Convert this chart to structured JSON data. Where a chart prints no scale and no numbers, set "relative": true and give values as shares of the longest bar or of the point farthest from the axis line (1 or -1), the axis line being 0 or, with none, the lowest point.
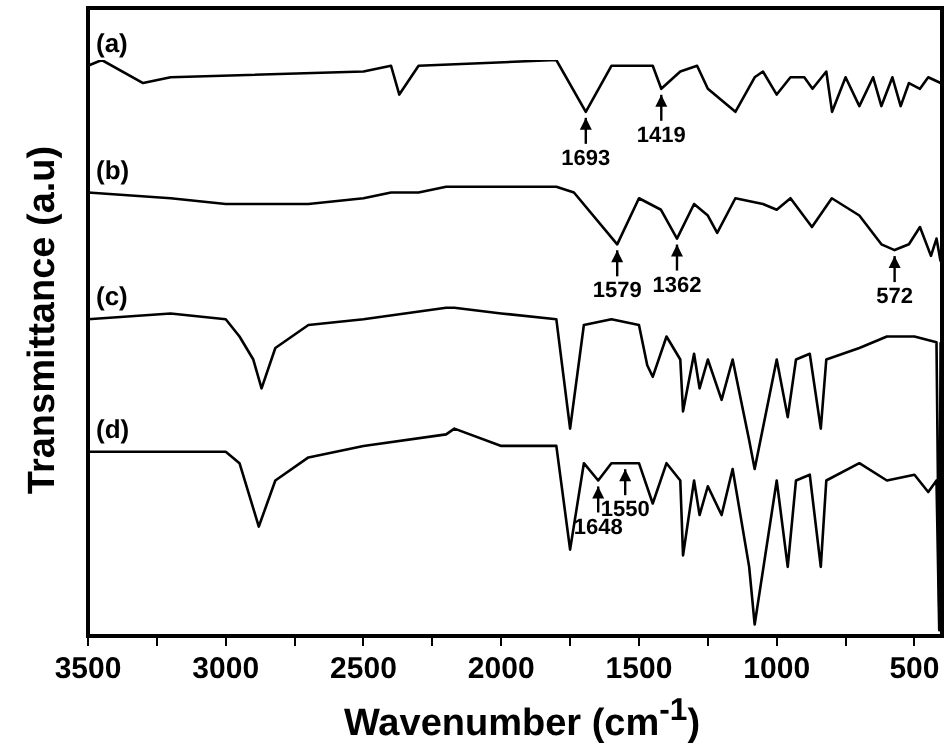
{
  "chart_data": {
    "type": "line",
    "relative": true,
    "xlabel": "Wavenumber (cm$^{-1}$)",
    "ylabel": "Transmittance (a.u)",
    "xlim": [
      3500,
      400
    ],
    "xticks": [
      3500,
      {
        "value": 3250,
        "label": null
      },
      3000,
      {
        "value": 2750,
        "label": null
      },
      2500,
      {
        "value": 2250,
        "label": null
      },
      2000,
      {
        "value": 1750,
        "label": null
      },
      1500,
      {
        "value": 1250,
        "label": null
      },
      1000,
      {
        "value": 750,
        "label": null
      },
      500
    ],
    "series": [
      {
        "color": "#000000",
        "x": [
          3500,
          3450,
          3300,
          3200,
          2500,
          2400,
          2370,
          2300,
          1800,
          1693,
          1600,
          1450,
          1419,
          1350,
          1289,
          1250,
          1150,
          1080,
          1050,
          1000,
          950,
          900,
          870,
          820,
          799,
          750,
          700,
          650,
          620,
          580,
          550,
          520,
          480,
          450,
          405
        ],
        "values": [
          0.99,
          1.0,
          0.96,
          0.97,
          0.98,
          0.99,
          0.94,
          0.99,
          1.0,
          0.91,
          0.99,
          0.99,
          0.95,
          0.98,
          0.99,
          0.95,
          0.91,
          0.97,
          0.98,
          0.94,
          0.97,
          0.97,
          0.95,
          0.98,
          0.91,
          0.97,
          0.92,
          0.97,
          0.92,
          0.97,
          0.92,
          0.96,
          0.95,
          0.97,
          0.96
        ]
      },
      {
        "color": "#000000",
        "x": [
          3500,
          3200,
          3000,
          2700,
          2500,
          2400,
          2300,
          2200,
          2000,
          1800,
          1736,
          1579,
          1500,
          1420,
          1362,
          1300,
          1250,
          1216,
          1150,
          1050,
          1000,
          950,
          872,
          800,
          700,
          620,
          572,
          520,
          480,
          440,
          420,
          405
        ],
        "values": [
          0.77,
          0.76,
          0.75,
          0.75,
          0.76,
          0.77,
          0.77,
          0.78,
          0.78,
          0.78,
          0.77,
          0.68,
          0.76,
          0.74,
          0.69,
          0.75,
          0.73,
          0.7,
          0.76,
          0.75,
          0.74,
          0.76,
          0.71,
          0.76,
          0.73,
          0.68,
          0.67,
          0.68,
          0.71,
          0.66,
          0.69,
          0.65
        ]
      },
      {
        "color": "#000000",
        "x": [
          3500,
          3200,
          3000,
          2950,
          2900,
          2870,
          2820,
          2700,
          2500,
          2200,
          2170,
          2000,
          1800,
          1750,
          1700,
          1600,
          1500,
          1470,
          1450,
          1400,
          1350,
          1340,
          1300,
          1280,
          1250,
          1200,
          1160,
          1100,
          1080,
          1000,
          960,
          930,
          880,
          840,
          820,
          700,
          600,
          500,
          420,
          410,
          405
        ],
        "values": [
          0.55,
          0.56,
          0.55,
          0.52,
          0.48,
          0.43,
          0.5,
          0.54,
          0.55,
          0.57,
          0.57,
          0.56,
          0.55,
          0.36,
          0.54,
          0.55,
          0.54,
          0.47,
          0.45,
          0.52,
          0.48,
          0.39,
          0.49,
          0.43,
          0.48,
          0.41,
          0.48,
          0.34,
          0.29,
          0.48,
          0.38,
          0.48,
          0.49,
          0.36,
          0.48,
          0.5,
          0.52,
          0.52,
          0.51,
          0.05,
          0.51
        ]
      },
      {
        "color": "#000000",
        "x": [
          3500,
          3200,
          3000,
          2950,
          2880,
          2820,
          2700,
          2500,
          2200,
          2170,
          2000,
          1800,
          1750,
          1700,
          1648,
          1600,
          1550,
          1500,
          1450,
          1400,
          1350,
          1340,
          1300,
          1280,
          1250,
          1200,
          1160,
          1100,
          1080,
          1000,
          960,
          930,
          880,
          840,
          820,
          700,
          600,
          500,
          450,
          420,
          410,
          405
        ],
        "values": [
          0.32,
          0.32,
          0.32,
          0.3,
          0.19,
          0.27,
          0.31,
          0.33,
          0.35,
          0.36,
          0.33,
          0.33,
          0.15,
          0.3,
          0.27,
          0.3,
          0.3,
          0.3,
          0.23,
          0.3,
          0.27,
          0.14,
          0.27,
          0.21,
          0.26,
          0.21,
          0.29,
          0.12,
          0.02,
          0.27,
          0.12,
          0.27,
          0.28,
          0.12,
          0.27,
          0.3,
          0.27,
          0.28,
          0.25,
          0.27,
          0.01,
          0.25
        ]
      }
    ],
    "annotations": [
      {
        "text": "(a)",
        "x": 3500,
        "y": 0.99
      },
      {
        "text": "(b)",
        "x": 3500,
        "y": 0.77
      },
      {
        "text": "(c)",
        "x": 3500,
        "y": 0.55
      },
      {
        "text": "(d)",
        "x": 3500,
        "y": 0.32
      },
      {
        "text": "1693",
        "x": 1693,
        "y": 0.91
      },
      {
        "text": "1419",
        "x": 1419,
        "y": 0.95
      },
      {
        "text": "1579",
        "x": 1579,
        "y": 0.68
      },
      {
        "text": "1362",
        "x": 1362,
        "y": 0.69
      },
      {
        "text": "572",
        "x": 572,
        "y": 0.67
      },
      {
        "text": "1648",
        "x": 1648,
        "y": 0.27
      },
      {
        "text": "1550",
        "x": 1550,
        "y": 0.3
      }
    ]
  }
}
